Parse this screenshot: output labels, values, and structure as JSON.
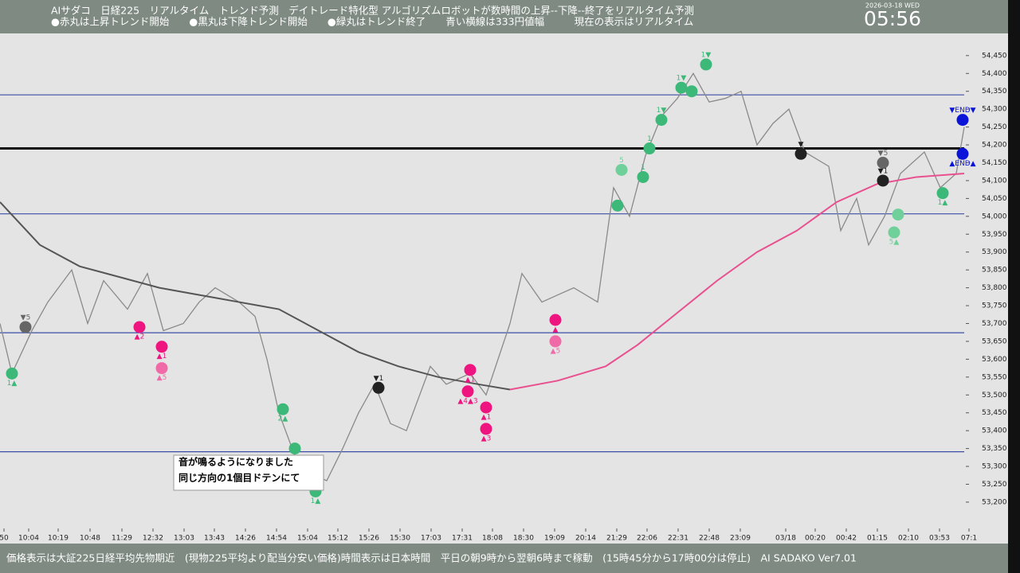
{
  "header": {
    "line1": "AIサダコ　日経225　リアルタイム　トレンド予測　デイトレード特化型 アルゴリズムロボットが数時間の上昇--下降--終了をリアルタイム予測",
    "line2": "●赤丸は上昇トレンド開始　　●黒丸は下降トレンド開始　　●緑丸はトレンド終了　　青い横線は333円値幅　　　現在の表示はリアルタイム",
    "date": "2026-03-18 WED",
    "clock": "05:56"
  },
  "footer": "価格表示は大証225日経平均先物期近　(現物225平均より配当分安い価格)時間表示は日本時間　平日の朝9時から翌朝6時まで稼動　(15時45分から17時00分は停止)　AI SADAKO Ver7.01",
  "note": [
    "音が鳴るようになりました",
    "同じ方向の1個目ドテンにて"
  ],
  "chart_data": {
    "type": "line",
    "xlim": [
      0,
      1210
    ],
    "ylim": [
      53084,
      54512
    ],
    "xticks": [
      {
        "value": 5,
        "label": "50"
      },
      {
        "value": 36,
        "label": "10:04"
      },
      {
        "value": 73,
        "label": "10:19"
      },
      {
        "value": 113,
        "label": "10:48"
      },
      {
        "value": 153,
        "label": "11:29"
      },
      {
        "value": 192,
        "label": "12:32"
      },
      {
        "value": 231,
        "label": "13:03"
      },
      {
        "value": 269,
        "label": "13:43"
      },
      {
        "value": 308,
        "label": "14:26"
      },
      {
        "value": 347,
        "label": "14:54"
      },
      {
        "value": 386,
        "label": "15:04"
      },
      {
        "value": 424,
        "label": "15:12"
      },
      {
        "value": 463,
        "label": "15:26"
      },
      {
        "value": 502,
        "label": "15:30"
      },
      {
        "value": 541,
        "label": "17:03"
      },
      {
        "value": 580,
        "label": "17:31"
      },
      {
        "value": 618,
        "label": "18:08"
      },
      {
        "value": 657,
        "label": "18:30"
      },
      {
        "value": 696,
        "label": "19:09"
      },
      {
        "value": 735,
        "label": "20:14"
      },
      {
        "value": 774,
        "label": "21:29"
      },
      {
        "value": 812,
        "label": "22:06"
      },
      {
        "value": 851,
        "label": "22:31"
      },
      {
        "value": 890,
        "label": "22:48"
      },
      {
        "value": 929,
        "label": "23:09"
      },
      {
        "value": 986,
        "label": "03/18"
      },
      {
        "value": 1023,
        "label": "00:20"
      },
      {
        "value": 1062,
        "label": "00:42"
      },
      {
        "value": 1101,
        "label": "01:15"
      },
      {
        "value": 1140,
        "label": "02:10"
      },
      {
        "value": 1179,
        "label": "03:53"
      },
      {
        "value": 1216,
        "label": "07:1"
      }
    ],
    "yticks": [
      {
        "value": 54450,
        "label": "54,450"
      },
      {
        "value": 54400,
        "label": "54,400"
      },
      {
        "value": 54350,
        "label": "54,350"
      },
      {
        "value": 54300,
        "label": "54,300"
      },
      {
        "value": 54250,
        "label": "54,250"
      },
      {
        "value": 54200,
        "label": "54,200"
      },
      {
        "value": 54150,
        "label": "54,150"
      },
      {
        "value": 54100,
        "label": "54,100"
      },
      {
        "value": 54050,
        "label": "54,050"
      },
      {
        "value": 54000,
        "label": "54,000"
      },
      {
        "value": 53950,
        "label": "53,950"
      },
      {
        "value": 53900,
        "label": "53,900"
      },
      {
        "value": 53850,
        "label": "53,850"
      },
      {
        "value": 53800,
        "label": "53,800"
      },
      {
        "value": 53750,
        "label": "53,750"
      },
      {
        "value": 53700,
        "label": "53,700"
      },
      {
        "value": 53650,
        "label": "53,650"
      },
      {
        "value": 53600,
        "label": "53,600"
      },
      {
        "value": 53550,
        "label": "53,550"
      },
      {
        "value": 53500,
        "label": "53,500"
      },
      {
        "value": 53450,
        "label": "53,450"
      },
      {
        "value": 53400,
        "label": "53,400"
      },
      {
        "value": 53350,
        "label": "53,350"
      },
      {
        "value": 53300,
        "label": "53,300"
      },
      {
        "value": 53250,
        "label": "53,250"
      },
      {
        "value": 53200,
        "label": "53,200"
      }
    ],
    "levels": [
      {
        "value": 54340,
        "color": "#3c4fa8",
        "width": 1.2
      },
      {
        "value": 54190,
        "color": "#111111",
        "width": 3
      },
      {
        "value": 54007,
        "color": "#3c4fa8",
        "width": 1.2
      },
      {
        "value": 53674,
        "color": "#3c4fa8",
        "width": 1.2
      },
      {
        "value": 53341,
        "color": "#3c4fa8",
        "width": 1.2
      }
    ],
    "series": [
      {
        "color": "#8a8a8a",
        "width": 1.3,
        "x": [
          0,
          15,
          40,
          60,
          90,
          110,
          130,
          160,
          185,
          205,
          230,
          250,
          270,
          300,
          320,
          335,
          350,
          370,
          390,
          410,
          430,
          450,
          470,
          490,
          510,
          540,
          560,
          590,
          610,
          640,
          655,
          680,
          700,
          720,
          750,
          770,
          790,
          810,
          830,
          850,
          870,
          890,
          910,
          930,
          950,
          970,
          990,
          1010,
          1040,
          1055,
          1075,
          1090,
          1110,
          1130,
          1160,
          1180,
          1200,
          1210
        ],
        "values": [
          53700,
          53560,
          53680,
          53760,
          53850,
          53700,
          53820,
          53740,
          53840,
          53680,
          53700,
          53760,
          53800,
          53760,
          53720,
          53600,
          53450,
          53330,
          53280,
          53260,
          53350,
          53450,
          53530,
          53420,
          53400,
          53580,
          53530,
          53560,
          53500,
          53700,
          53840,
          53760,
          53780,
          53800,
          53760,
          54080,
          54000,
          54170,
          54280,
          54330,
          54400,
          54320,
          54330,
          54350,
          54200,
          54260,
          54300,
          54180,
          54140,
          53960,
          54050,
          53920,
          54000,
          54120,
          54180,
          54080,
          54120,
          54250
        ]
      },
      {
        "color": "#555555",
        "width": 2,
        "x": [
          0,
          50,
          100,
          150,
          200,
          250,
          300,
          350,
          400,
          450,
          500,
          550,
          600,
          640
        ],
        "values": [
          54040,
          53920,
          53860,
          53830,
          53800,
          53780,
          53760,
          53740,
          53680,
          53620,
          53580,
          53550,
          53530,
          53515
        ]
      },
      {
        "color": "#e8508f",
        "width": 2,
        "x": [
          640,
          700,
          760,
          800,
          850,
          900,
          950,
          1000,
          1050,
          1100,
          1150,
          1210
        ],
        "values": [
          53515,
          53540,
          53580,
          53640,
          53730,
          53820,
          53900,
          53960,
          54040,
          54090,
          54110,
          54120
        ]
      }
    ],
    "signals": [
      {
        "x": 32,
        "y": 53690,
        "color": "#666666",
        "label": "▼5",
        "pos": "above"
      },
      {
        "x": 15,
        "y": 53560,
        "color": "#3cb878",
        "label": "1▲",
        "pos": "below"
      },
      {
        "x": 175,
        "y": 53690,
        "color": "#ee1580",
        "label": "▲2",
        "pos": "below"
      },
      {
        "x": 203,
        "y": 53635,
        "color": "#ee1580",
        "label": "▲1",
        "pos": "below"
      },
      {
        "x": 203,
        "y": 53575,
        "color": "#f06aa8",
        "label": "▲5",
        "pos": "below"
      },
      {
        "x": 355,
        "y": 53460,
        "color": "#3cb878",
        "label": "2▲",
        "pos": "below"
      },
      {
        "x": 370,
        "y": 53350,
        "color": "#3cb878",
        "label": "▲",
        "pos": "below"
      },
      {
        "x": 396,
        "y": 53230,
        "color": "#3cb878",
        "label": "1▲",
        "pos": "below"
      },
      {
        "x": 475,
        "y": 53520,
        "color": "#222222",
        "label": "▼1",
        "pos": "above"
      },
      {
        "x": 590,
        "y": 53570,
        "color": "#ee1580",
        "label": "▲1",
        "pos": "below"
      },
      {
        "x": 587,
        "y": 53510,
        "color": "#ee1580",
        "label": "▲4▲3",
        "pos": "below"
      },
      {
        "x": 610,
        "y": 53465,
        "color": "#ee1580",
        "label": "▲1",
        "pos": "below"
      },
      {
        "x": 610,
        "y": 53405,
        "color": "#ee1580",
        "label": "▲3",
        "pos": "below"
      },
      {
        "x": 697,
        "y": 53710,
        "color": "#ee1580",
        "label": "▲",
        "pos": "below"
      },
      {
        "x": 697,
        "y": 53650,
        "color": "#f06aa8",
        "label": "▲5",
        "pos": "below"
      },
      {
        "x": 780,
        "y": 54130,
        "color": "#6fd09a",
        "label": "5",
        "pos": "above"
      },
      {
        "x": 775,
        "y": 54030,
        "color": "#3cb878",
        "label": "",
        "pos": "above"
      },
      {
        "x": 807,
        "y": 54110,
        "color": "#3cb878",
        "label": "1",
        "pos": "above"
      },
      {
        "x": 815,
        "y": 54190,
        "color": "#3cb878",
        "label": "1",
        "pos": "above"
      },
      {
        "x": 830,
        "y": 54270,
        "color": "#3cb878",
        "label": "1▼",
        "pos": "above"
      },
      {
        "x": 855,
        "y": 54360,
        "color": "#3cb878",
        "label": "1▼",
        "pos": "above"
      },
      {
        "x": 868,
        "y": 54350,
        "color": "#3cb878",
        "label": "",
        "pos": "above"
      },
      {
        "x": 886,
        "y": 54425,
        "color": "#3cb878",
        "label": "1▼",
        "pos": "above"
      },
      {
        "x": 1005,
        "y": 54175,
        "color": "#222222",
        "label": "▼",
        "pos": "above"
      },
      {
        "x": 1108,
        "y": 54150,
        "color": "#666666",
        "label": "▼5",
        "pos": "above"
      },
      {
        "x": 1108,
        "y": 54100,
        "color": "#222222",
        "label": "▼1",
        "pos": "above"
      },
      {
        "x": 1127,
        "y": 54005,
        "color": "#6fd09a",
        "label": "",
        "pos": "below"
      },
      {
        "x": 1122,
        "y": 53955,
        "color": "#6fd09a",
        "label": "5▲",
        "pos": "below"
      },
      {
        "x": 1183,
        "y": 54065,
        "color": "#3cb878",
        "label": "1▲",
        "pos": "below"
      },
      {
        "x": 1208,
        "y": 54270,
        "color": "#0a14d8",
        "label": "▼END▼",
        "pos": "above"
      },
      {
        "x": 1208,
        "y": 54175,
        "color": "#0a14d8",
        "label": "▲END▲",
        "pos": "below"
      }
    ]
  }
}
